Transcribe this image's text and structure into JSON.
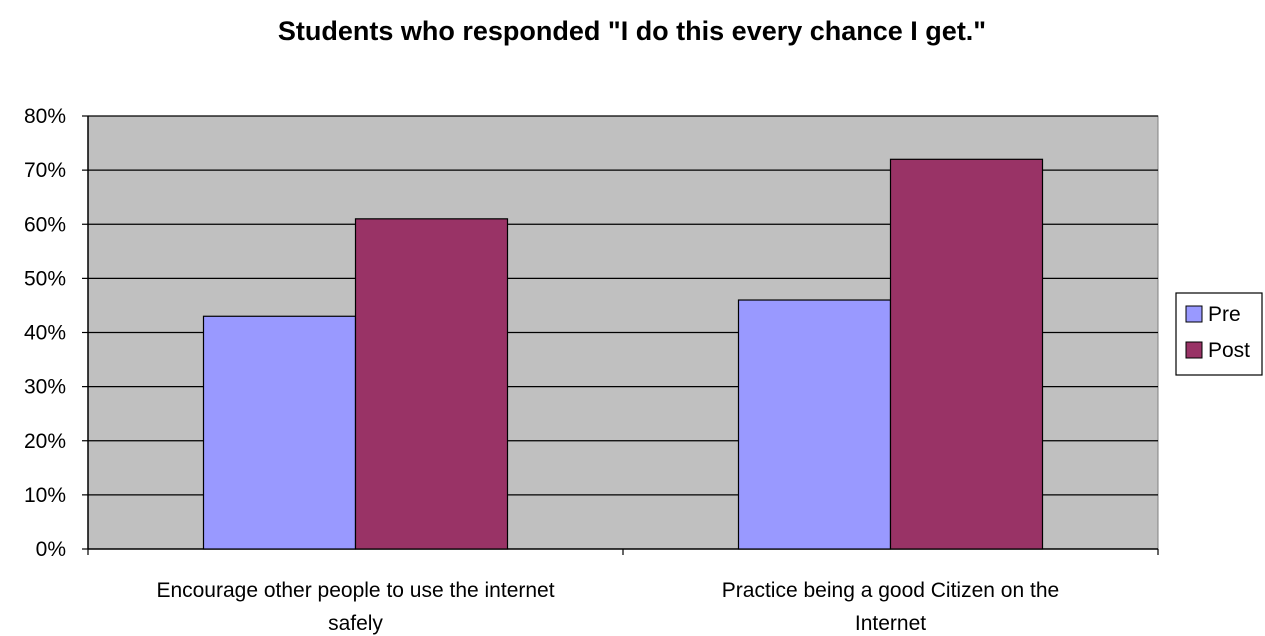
{
  "chart_data": {
    "type": "bar",
    "title": "Students who responded \"I do this every chance I get.\"",
    "categories": [
      [
        "Encourage other people to use the internet",
        "safely"
      ],
      [
        "Practice being a good Citizen on the",
        "Internet"
      ]
    ],
    "series": [
      {
        "name": "Pre",
        "values": [
          43,
          46
        ],
        "color": "#9999ff"
      },
      {
        "name": "Post",
        "values": [
          61,
          72
        ],
        "color": "#993366"
      }
    ],
    "ylim": [
      0,
      80
    ],
    "yticks": [
      0,
      10,
      20,
      30,
      40,
      50,
      60,
      70,
      80
    ],
    "ytick_suffix": "%",
    "grid": true,
    "plot_background": "#c0c0c0",
    "legend_position": "right"
  }
}
